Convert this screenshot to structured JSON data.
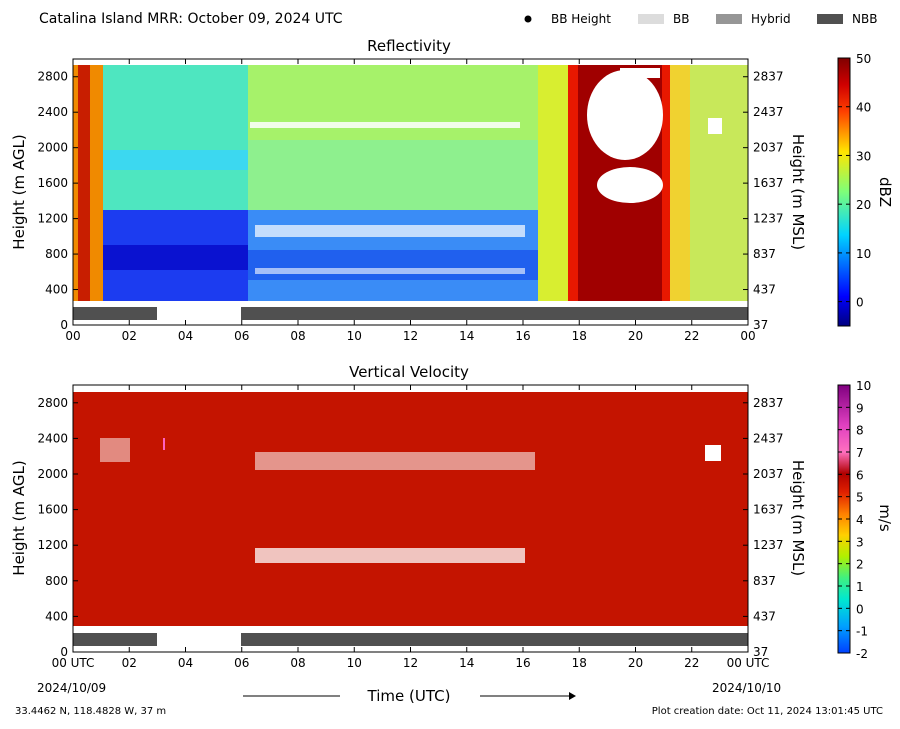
{
  "header": {
    "title": "Catalina Island MRR:  October 09, 2024 UTC",
    "legend": [
      {
        "label": "BB Height",
        "kind": "dot",
        "color": "#000000"
      },
      {
        "label": "BB",
        "kind": "bar",
        "color": "#dcdcdc"
      },
      {
        "label": "Hybrid",
        "kind": "bar",
        "color": "#969696"
      },
      {
        "label": "NBB",
        "kind": "bar",
        "color": "#505050"
      }
    ]
  },
  "footer": {
    "location": "33.4462 N, 118.4828 W, 37 m",
    "created": "Plot creation date: Oct 11, 2024 13:01:45 UTC",
    "xlabel": "Time (UTC)",
    "start_date": "2024/10/09",
    "end_date": "2024/10/10"
  },
  "chart_data": [
    {
      "type": "heatmap",
      "title": "Reflectivity",
      "ylabel_left": "Height (m AGL)",
      "ylabel_right": "Height (m MSL)",
      "colorbar_label": "dBZ",
      "colorbar_ticks": [
        "50",
        "40",
        "30",
        "20",
        "10",
        "0"
      ],
      "colorbar_range": [
        -5,
        50
      ],
      "y_ticks_left": [
        "2800",
        "2400",
        "2000",
        "1600",
        "1200",
        "800",
        "400",
        "0"
      ],
      "y_ticks_right": [
        "2837",
        "2437",
        "2037",
        "1637",
        "1237",
        "837",
        "437",
        "37"
      ],
      "x_ticks": [
        "00",
        "02",
        "04",
        "06",
        "08",
        "10",
        "12",
        "14",
        "16",
        "18",
        "20",
        "22",
        "00"
      ],
      "xlim_hours": [
        0,
        24
      ],
      "ylim_m_agl": [
        0,
        3000
      ],
      "precip_type_segments": [
        {
          "start_hour": 0,
          "end_hour": 3,
          "type": "NBB"
        },
        {
          "start_hour": 6,
          "end_hour": 24,
          "type": "NBB"
        }
      ]
    },
    {
      "type": "heatmap",
      "title": "Vertical Velocity",
      "ylabel_left": "Height (m AGL)",
      "ylabel_right": "Height (m MSL)",
      "colorbar_label": "m/s",
      "colorbar_ticks": [
        "10",
        "9",
        "8",
        "7",
        "6",
        "5",
        "4",
        "3",
        "2",
        "1",
        "0",
        "-1",
        "-2"
      ],
      "colorbar_range": [
        -2,
        10
      ],
      "y_ticks_left": [
        "2800",
        "2400",
        "2000",
        "1600",
        "1200",
        "800",
        "400",
        "0"
      ],
      "y_ticks_right": [
        "2837",
        "2437",
        "2037",
        "1637",
        "1237",
        "837",
        "437",
        "37"
      ],
      "x_ticks": [
        "00 UTC",
        "02",
        "04",
        "06",
        "08",
        "10",
        "12",
        "14",
        "16",
        "18",
        "20",
        "22",
        "00 UTC"
      ],
      "xlim_hours": [
        0,
        24
      ],
      "ylim_m_agl": [
        0,
        3000
      ],
      "precip_type_segments": [
        {
          "start_hour": 0,
          "end_hour": 3,
          "type": "NBB"
        },
        {
          "start_hour": 6,
          "end_hour": 24,
          "type": "NBB"
        }
      ]
    }
  ]
}
